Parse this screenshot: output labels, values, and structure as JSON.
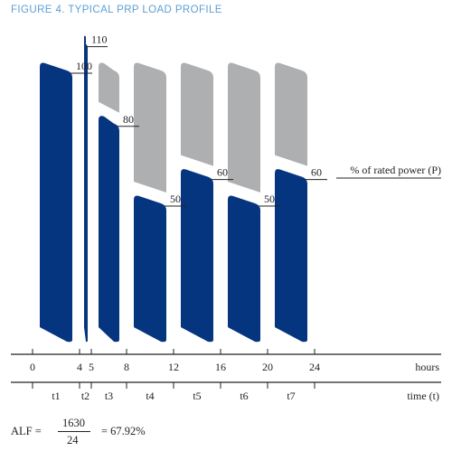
{
  "figure_title": "FIGURE 4.  TYPICAL PRP LOAD PROFILE",
  "chart_data": {
    "type": "bar",
    "title": "FIGURE 4.  TYPICAL PRP LOAD PROFILE",
    "ylabel": "% of rated power (P)",
    "xlabel": "hours",
    "xlim": [
      0,
      24
    ],
    "x_ticks": [
      "0",
      "4",
      "5",
      "8",
      "12",
      "16",
      "20",
      "24"
    ],
    "x_tick_values": [
      0,
      4,
      5,
      8,
      12,
      16,
      20,
      24
    ],
    "intervals_label": "time (t)",
    "segments": [
      {
        "label": "t1",
        "start": 0,
        "end": 4,
        "value": 100
      },
      {
        "label": "t2",
        "start": 4,
        "end": 5,
        "value": 110
      },
      {
        "label": "t3",
        "start": 5,
        "end": 8,
        "value": 80
      },
      {
        "label": "t4",
        "start": 8,
        "end": 12,
        "value": 50
      },
      {
        "label": "t5",
        "start": 12,
        "end": 16,
        "value": 60
      },
      {
        "label": "t6",
        "start": 16,
        "end": 20,
        "value": 50
      },
      {
        "label": "t7",
        "start": 20,
        "end": 24,
        "value": 60
      }
    ],
    "value_labels": [
      "100",
      "110",
      "80",
      "50",
      "60",
      "50",
      "60"
    ],
    "reference_level": 100,
    "colors": {
      "load": "#063580",
      "remaining": "#aeafb1"
    }
  },
  "alf": {
    "label": "ALF =",
    "numerator": "1630",
    "denominator": "24",
    "result": "= 67.92%"
  }
}
